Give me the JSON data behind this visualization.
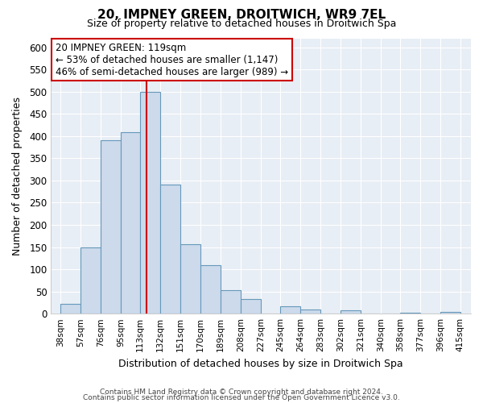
{
  "title": "20, IMPNEY GREEN, DROITWICH, WR9 7EL",
  "subtitle": "Size of property relative to detached houses in Droitwich Spa",
  "xlabel": "Distribution of detached houses by size in Droitwich Spa",
  "ylabel": "Number of detached properties",
  "bin_edges": [
    38,
    57,
    76,
    95,
    113,
    132,
    151,
    170,
    189,
    208,
    227,
    245,
    264,
    283,
    302,
    321,
    340,
    358,
    377,
    396,
    415
  ],
  "bar_heights": [
    23,
    149,
    390,
    408,
    500,
    290,
    157,
    109,
    53,
    33,
    0,
    16,
    9,
    0,
    7,
    0,
    0,
    3,
    0,
    4
  ],
  "bar_color": "#ccdaeb",
  "bar_edge_color": "#6699bb",
  "property_line_x": 119,
  "annotation_title": "20 IMPNEY GREEN: 119sqm",
  "annotation_line1": "← 53% of detached houses are smaller (1,147)",
  "annotation_line2": "46% of semi-detached houses are larger (989) →",
  "annotation_box_color": "#ffffff",
  "annotation_box_edge_color": "#cc0000",
  "red_line_color": "#cc0000",
  "ylim": [
    0,
    620
  ],
  "xlim": [
    29,
    425
  ],
  "yticks": [
    0,
    50,
    100,
    150,
    200,
    250,
    300,
    350,
    400,
    450,
    500,
    550,
    600
  ],
  "tick_labels": [
    "38sqm",
    "57sqm",
    "76sqm",
    "95sqm",
    "113sqm",
    "132sqm",
    "151sqm",
    "170sqm",
    "189sqm",
    "208sqm",
    "227sqm",
    "245sqm",
    "264sqm",
    "283sqm",
    "302sqm",
    "321sqm",
    "340sqm",
    "358sqm",
    "377sqm",
    "396sqm",
    "415sqm"
  ],
  "tick_positions": [
    38,
    57,
    76,
    95,
    113,
    132,
    151,
    170,
    189,
    208,
    227,
    245,
    264,
    283,
    302,
    321,
    340,
    358,
    377,
    396,
    415
  ],
  "footer_line1": "Contains HM Land Registry data © Crown copyright and database right 2024.",
  "footer_line2": "Contains public sector information licensed under the Open Government Licence v3.0.",
  "background_color": "#e8eef5",
  "grid_color": "#ffffff"
}
